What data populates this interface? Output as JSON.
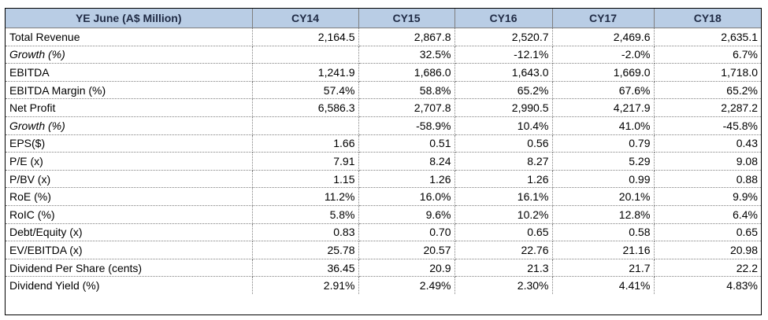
{
  "table": {
    "header": [
      "YE June (A$ Million)",
      "CY14",
      "CY15",
      "CY16",
      "CY17",
      "CY18"
    ],
    "rows": [
      {
        "label": "Total Revenue",
        "italic": false,
        "values": [
          "2,164.5",
          "2,867.8",
          "2,520.7",
          "2,469.6",
          "2,635.1"
        ]
      },
      {
        "label": "Growth (%)",
        "italic": true,
        "values": [
          "",
          "32.5%",
          "-12.1%",
          "-2.0%",
          "6.7%"
        ]
      },
      {
        "label": "EBITDA",
        "italic": false,
        "values": [
          "1,241.9",
          "1,686.0",
          "1,643.0",
          "1,669.0",
          "1,718.0"
        ]
      },
      {
        "label": "EBITDA Margin (%)",
        "italic": false,
        "values": [
          "57.4%",
          "58.8%",
          "65.2%",
          "67.6%",
          "65.2%"
        ]
      },
      {
        "label": "Net Profit",
        "italic": false,
        "values": [
          "6,586.3",
          "2,707.8",
          "2,990.5",
          "4,217.9",
          "2,287.2"
        ]
      },
      {
        "label": "Growth (%)",
        "italic": true,
        "values": [
          "",
          "-58.9%",
          "10.4%",
          "41.0%",
          "-45.8%"
        ]
      },
      {
        "label": "EPS($)",
        "italic": false,
        "values": [
          "1.66",
          "0.51",
          "0.56",
          "0.79",
          "0.43"
        ]
      },
      {
        "label": "P/E (x)",
        "italic": false,
        "values": [
          "7.91",
          "8.24",
          "8.27",
          "5.29",
          "9.08"
        ]
      },
      {
        "label": "P/BV (x)",
        "italic": false,
        "values": [
          "1.15",
          "1.26",
          "1.26",
          "0.99",
          "0.88"
        ]
      },
      {
        "label": "RoE (%)",
        "italic": false,
        "values": [
          "11.2%",
          "16.0%",
          "16.1%",
          "20.1%",
          "9.9%"
        ]
      },
      {
        "label": "RoIC (%)",
        "italic": false,
        "values": [
          "5.8%",
          "9.6%",
          "10.2%",
          "12.8%",
          "6.4%"
        ]
      },
      {
        "label": "Debt/Equity (x)",
        "italic": false,
        "values": [
          "0.83",
          "0.70",
          "0.65",
          "0.58",
          "0.65"
        ]
      },
      {
        "label": "EV/EBITDA (x)",
        "italic": false,
        "values": [
          "25.78",
          "20.57",
          "22.76",
          "21.16",
          "20.98"
        ]
      },
      {
        "label": "Dividend Per Share (cents)",
        "italic": false,
        "values": [
          "36.45",
          "20.9",
          "21.3",
          "21.7",
          "22.2"
        ]
      },
      {
        "label": "Dividend Yield (%)",
        "italic": false,
        "values": [
          "2.91%",
          "2.49%",
          "2.30%",
          "4.41%",
          "4.83%"
        ]
      }
    ]
  },
  "colors": {
    "header_background": "#b9cde5",
    "header_text": "#1f2a44",
    "grid_line": "#7f7f7f"
  }
}
